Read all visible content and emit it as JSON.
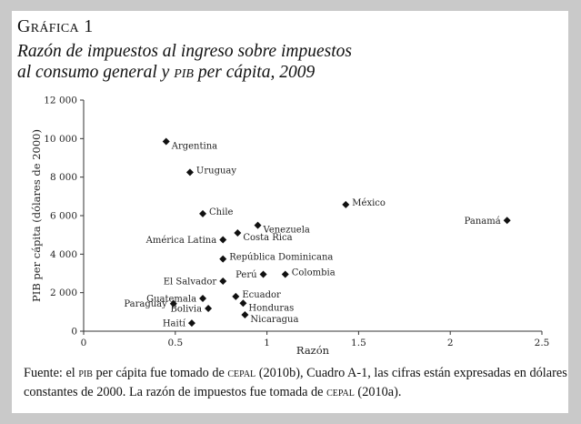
{
  "figure": {
    "label": "Gráfica 1",
    "title_line1": "Razón de impuestos al ingreso sobre impuestos",
    "title_line2_pre": "al consumo general y ",
    "title_line2_abbr": "pib",
    "title_line2_post": " per cápita, 2009"
  },
  "footnote": {
    "p1": "Fuente: el ",
    "abbr1": "pib",
    "p2": " per cápita fue tomado de ",
    "abbr2": "cepal",
    "p3": " (2010b), Cuadro A-1, las cifras están expresadas en dólares constantes de 2000. La razón de impuestos fue tomada de ",
    "abbr3": "cepal",
    "p4": " (2010a)."
  },
  "chart_data": {
    "type": "scatter",
    "title": "Razón de impuestos al ingreso sobre impuestos al consumo general y PIB per cápita, 2009",
    "xlabel": "Razón",
    "ylabel": "PIB per cápita (dólares de 2000)",
    "xlim": [
      0,
      2.5
    ],
    "ylim": [
      0,
      12000
    ],
    "x_ticks": [
      0,
      0.5,
      1,
      1.5,
      2,
      2.5
    ],
    "x_tick_labels": [
      "0",
      "0.5",
      "1",
      "1.5",
      "2",
      "2.5"
    ],
    "y_ticks": [
      0,
      2000,
      4000,
      6000,
      8000,
      10000,
      12000
    ],
    "y_tick_labels": [
      "0",
      "2 000",
      "4 000",
      "6 000",
      "8 000",
      "10 000",
      "12 000"
    ],
    "grid": false,
    "marker": "diamond",
    "points": [
      {
        "label": "Argentina",
        "x": 0.45,
        "y": 9850,
        "label_side": "right-below"
      },
      {
        "label": "Uruguay",
        "x": 0.58,
        "y": 8250,
        "label_side": "right"
      },
      {
        "label": "México",
        "x": 1.43,
        "y": 6570,
        "label_side": "right"
      },
      {
        "label": "Panamá",
        "x": 2.31,
        "y": 5750,
        "label_side": "left"
      },
      {
        "label": "Chile",
        "x": 0.65,
        "y": 6100,
        "label_side": "right"
      },
      {
        "label": "Venezuela",
        "x": 0.95,
        "y": 5500,
        "label_side": "right-below"
      },
      {
        "label": "Costa Rica",
        "x": 0.84,
        "y": 5100,
        "label_side": "right-below"
      },
      {
        "label": "América Latina",
        "x": 0.76,
        "y": 4750,
        "label_side": "left"
      },
      {
        "label": "República Dominicana",
        "x": 0.76,
        "y": 3750,
        "label_side": "right"
      },
      {
        "label": "Perú",
        "x": 0.98,
        "y": 2950,
        "label_side": "left"
      },
      {
        "label": "Colombia",
        "x": 1.1,
        "y": 2950,
        "label_side": "right"
      },
      {
        "label": "El Salvador",
        "x": 0.76,
        "y": 2600,
        "label_side": "left"
      },
      {
        "label": "Ecuador",
        "x": 0.83,
        "y": 1800,
        "label_side": "right"
      },
      {
        "label": "Guatemala",
        "x": 0.65,
        "y": 1700,
        "label_side": "left"
      },
      {
        "label": "Honduras",
        "x": 0.87,
        "y": 1450,
        "label_side": "right-below"
      },
      {
        "label": "Paraguay",
        "x": 0.49,
        "y": 1430,
        "label_side": "left"
      },
      {
        "label": "Bolivia",
        "x": 0.68,
        "y": 1180,
        "label_side": "left"
      },
      {
        "label": "Nicaragua",
        "x": 0.88,
        "y": 850,
        "label_side": "right-below"
      },
      {
        "label": "Haití",
        "x": 0.59,
        "y": 420,
        "label_side": "left"
      }
    ]
  }
}
